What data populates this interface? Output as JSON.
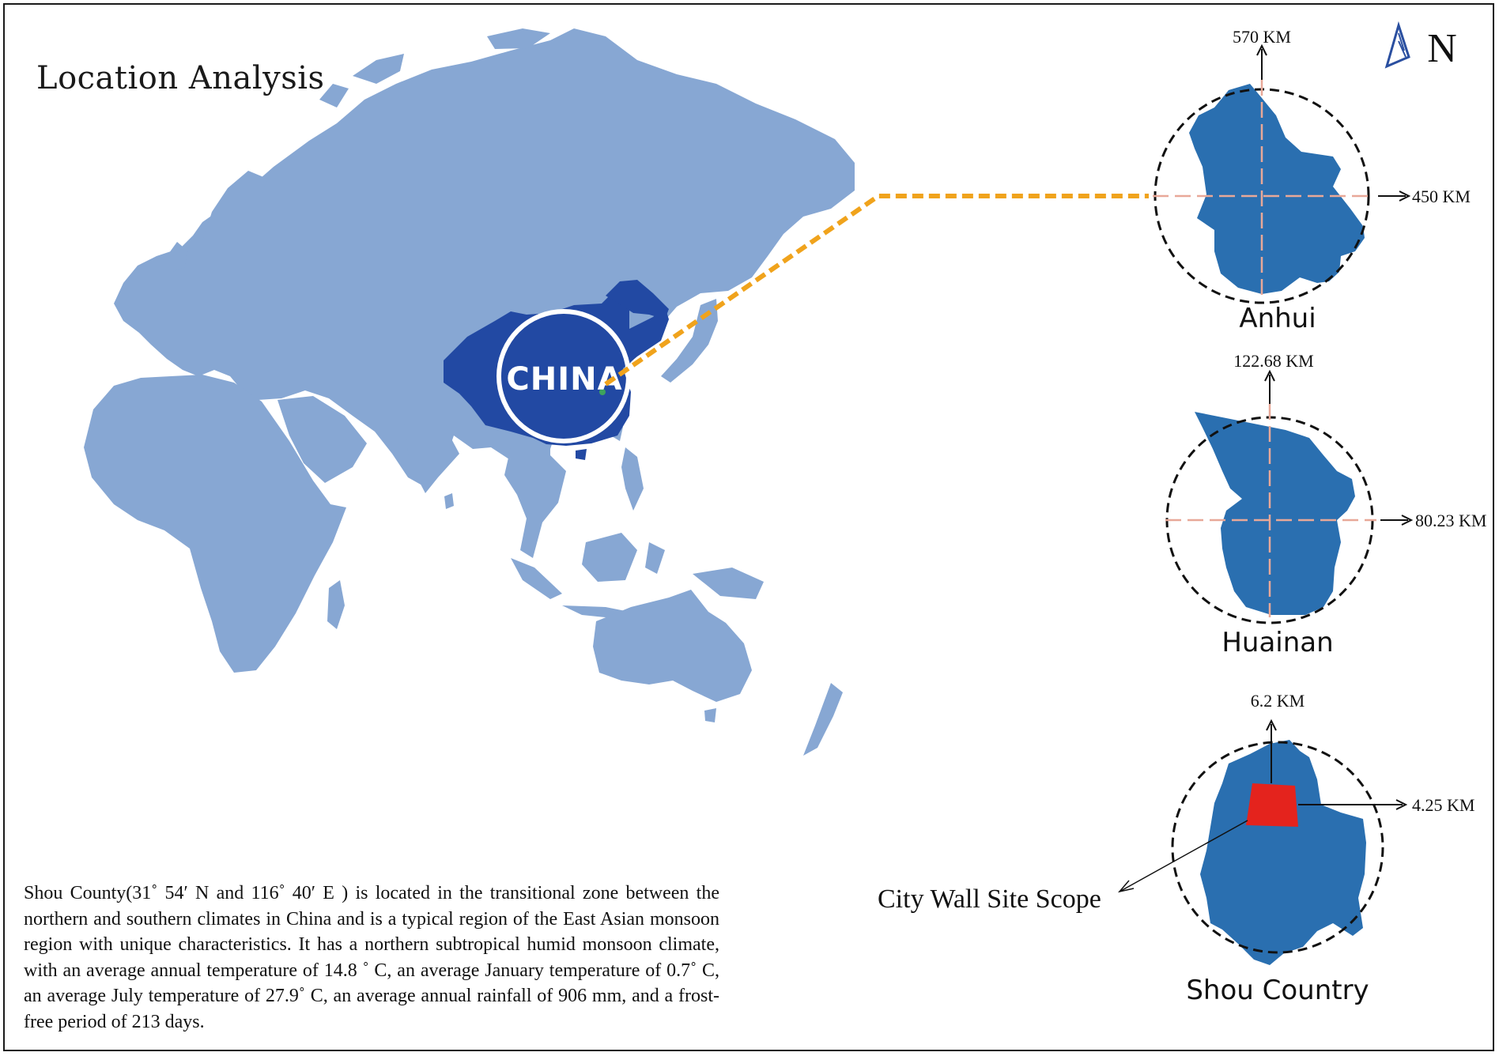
{
  "title": "Location Analysis",
  "country_label": "CHINA",
  "north_label": "N",
  "description": "Shou County(31˚ 54′ N and 116˚ 40′ E ) is located in the transitional zone between the northern and southern climates in China and is a typical region of the East Asian monsoon region with unique characteristics. It has a northern subtropical humid monsoon climate, with an average annual temperature of 14.8 ˚ C, an average January temperature of 0.7˚ C, an average July temperature of 27.9˚ C, an average annual rainfall of 906 mm, and a frost-free period of  213 days.",
  "panels": [
    {
      "name": "Anhui",
      "ns_extent": "570 KM",
      "ew_extent": "450 KM"
    },
    {
      "name": "Huainan",
      "ns_extent": "122.68 KM",
      "ew_extent": "80.23 KM"
    },
    {
      "name": "Shou Country",
      "ns_extent": "6.2 KM",
      "ew_extent": "4.25 KM",
      "callout": "City Wall Site Scope"
    }
  ],
  "colors": {
    "land": "#87a7d3",
    "china": "#2249a3",
    "region": "#2a6fb0",
    "site": "#e4231d",
    "connector": "#f0a31c",
    "crosshair": "#e8a898"
  },
  "icons": [
    "north-arrow-icon",
    "china-highlight-circle-icon"
  ]
}
